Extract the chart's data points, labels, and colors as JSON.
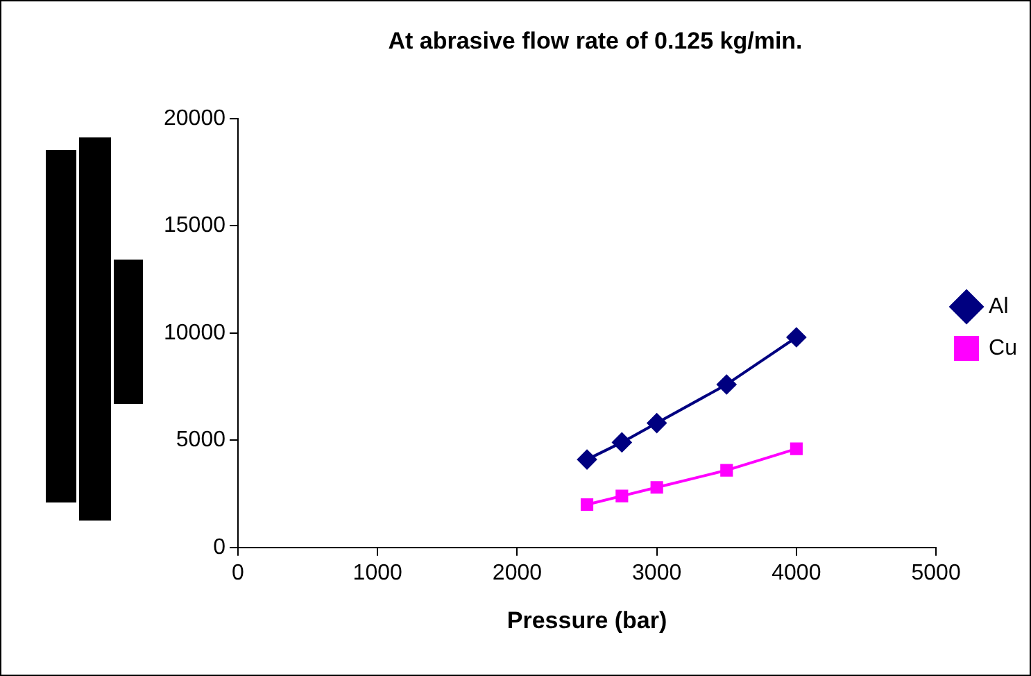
{
  "chart_data": {
    "type": "line",
    "title": "At abrasive flow rate of 0.125 kg/min.",
    "xlabel": "Pressure (bar)",
    "x": [
      2500,
      2750,
      3000,
      3500,
      4000
    ],
    "series": [
      {
        "name": "Al",
        "color": "#000080",
        "marker": "diamond",
        "values": [
          4100,
          4900,
          5800,
          7600,
          9800
        ]
      },
      {
        "name": "Cu",
        "color": "#ff00ff",
        "marker": "square",
        "values": [
          2000,
          2400,
          2800,
          3600,
          4600
        ]
      }
    ],
    "xlim": [
      0,
      5000
    ],
    "xticks": [
      0,
      1000,
      2000,
      3000,
      4000,
      5000
    ],
    "ylim": [
      0,
      20000
    ],
    "yticks": [
      0,
      5000,
      10000,
      15000,
      20000
    ],
    "grid": false,
    "legend": "right"
  }
}
